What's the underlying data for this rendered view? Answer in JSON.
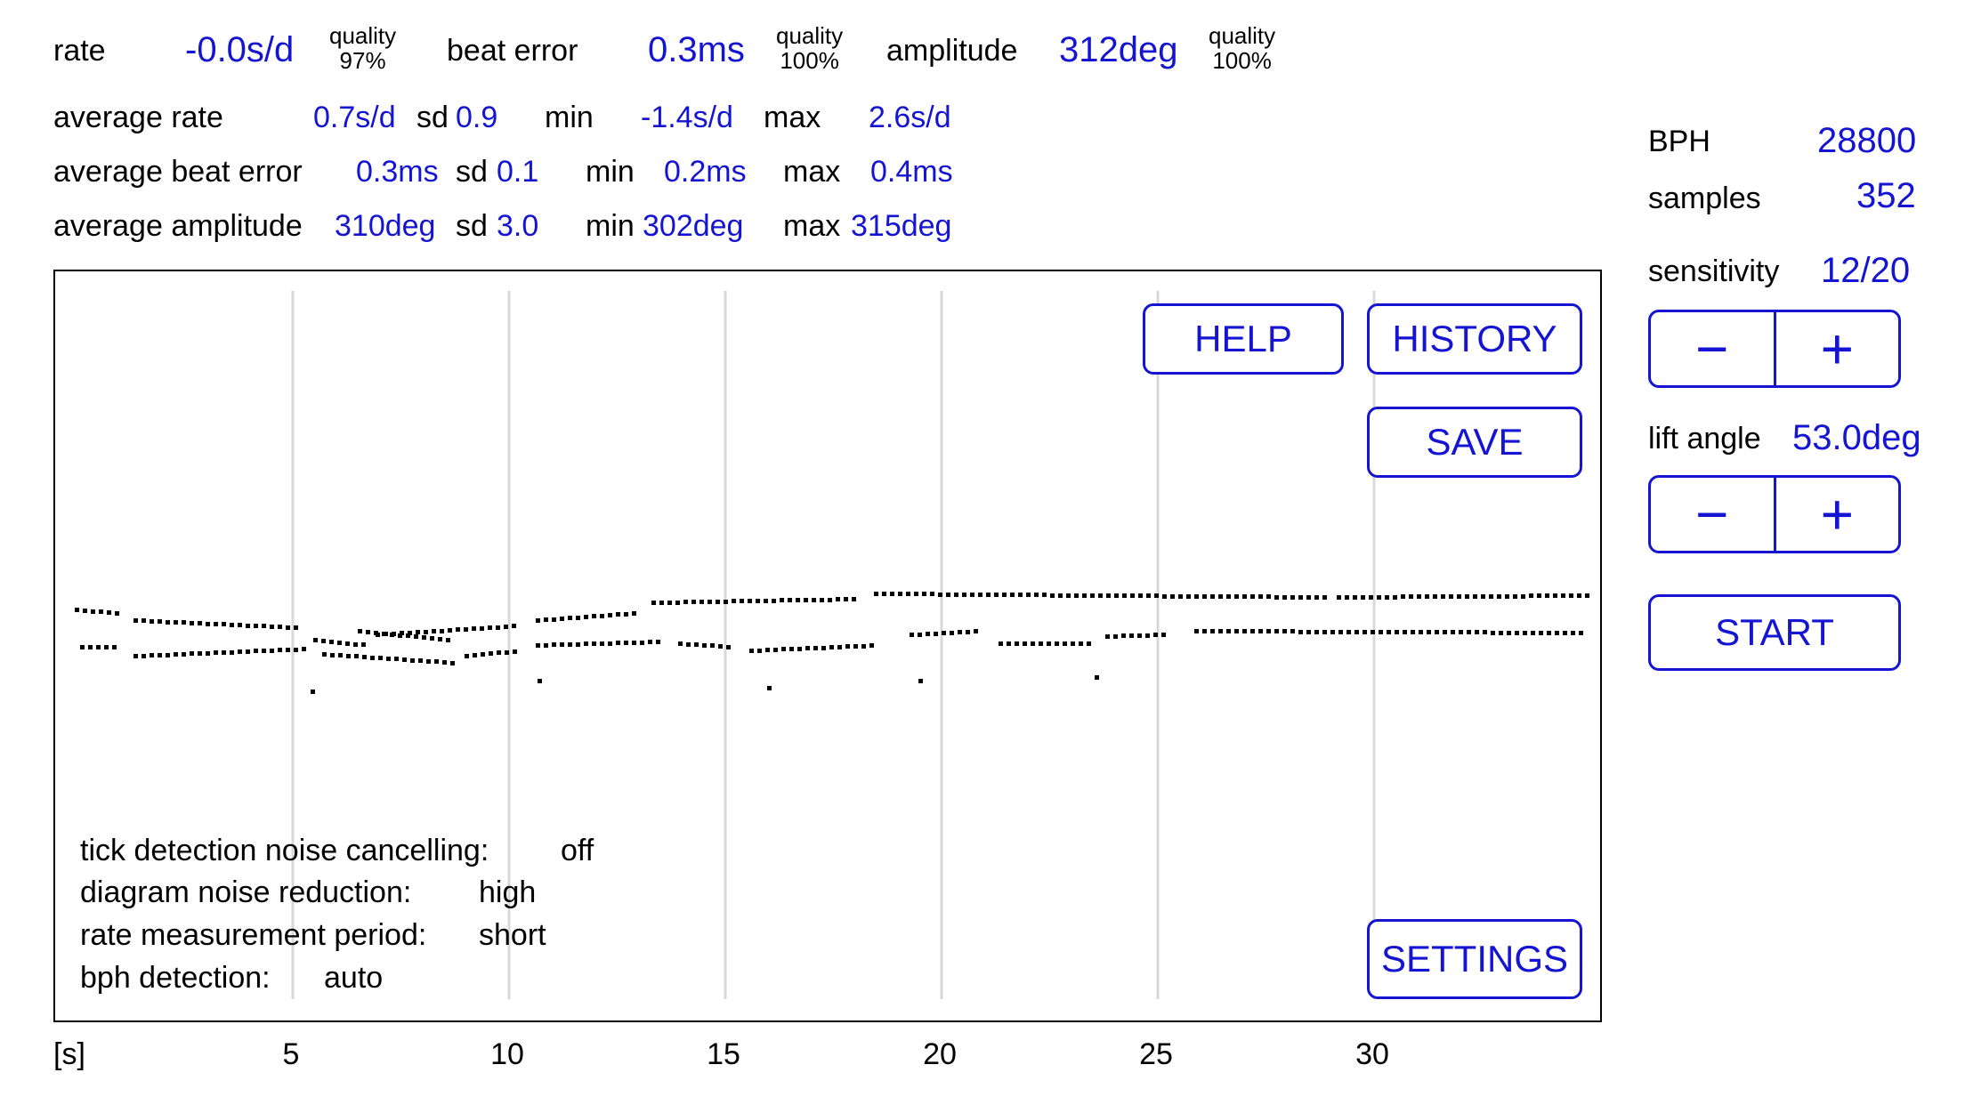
{
  "header": {
    "rate": {
      "label": "rate",
      "value": "-0.0s/d",
      "quality_label": "quality",
      "quality_value": "97%"
    },
    "beat_error": {
      "label": "beat error",
      "value": "0.3ms",
      "quality_label": "quality",
      "quality_value": "100%"
    },
    "amplitude": {
      "label": "amplitude",
      "value": "312deg",
      "quality_label": "quality",
      "quality_value": "100%"
    }
  },
  "averages": {
    "rate": {
      "label": "average rate",
      "value": "0.7s/d",
      "sd_label": "sd",
      "sd": "0.9",
      "min_label": "min",
      "min": "-1.4s/d",
      "max_label": "max",
      "max": "2.6s/d"
    },
    "beat_error": {
      "label": "average beat error",
      "value": "0.3ms",
      "sd_label": "sd",
      "sd": "0.1",
      "min_label": "min",
      "min": "0.2ms",
      "max_label": "max",
      "max": "0.4ms"
    },
    "amplitude": {
      "label": "average amplitude",
      "value": "310deg",
      "sd_label": "sd",
      "sd": "3.0",
      "min_label": "min",
      "min": "302deg",
      "max_label": "max",
      "max": "315deg"
    }
  },
  "sidebar": {
    "bph_label": "BPH",
    "bph_value": "28800",
    "samples_label": "samples",
    "samples_value": "352",
    "sensitivity_label": "sensitivity",
    "sensitivity_value": "12/20",
    "lift_angle_label": "lift angle",
    "lift_angle_value": "53.0deg",
    "minus": "−",
    "plus": "+",
    "start": "START"
  },
  "buttons": {
    "help": "HELP",
    "history": "HISTORY",
    "save": "SAVE",
    "settings": "SETTINGS"
  },
  "status": {
    "noise_cancel_label": "tick detection noise cancelling:",
    "noise_cancel_value": "off",
    "noise_reduction_label": "diagram noise reduction:",
    "noise_reduction_value": "high",
    "period_label": "rate measurement period:",
    "period_value": "short",
    "bph_detect_label": "bph detection:",
    "bph_detect_value": "auto"
  },
  "axis": {
    "unit": "[s]",
    "ticks": [
      "5",
      "10",
      "15",
      "20",
      "25",
      "30"
    ]
  },
  "colors": {
    "accent": "#1414d2",
    "grid": "#d8d8d8",
    "dots": "#000000"
  },
  "chart_data": {
    "type": "scatter",
    "x_unit": "s",
    "xlim": [
      0,
      36
    ],
    "ticks": [
      5,
      10,
      15,
      20,
      25,
      30
    ],
    "grid": true
  }
}
